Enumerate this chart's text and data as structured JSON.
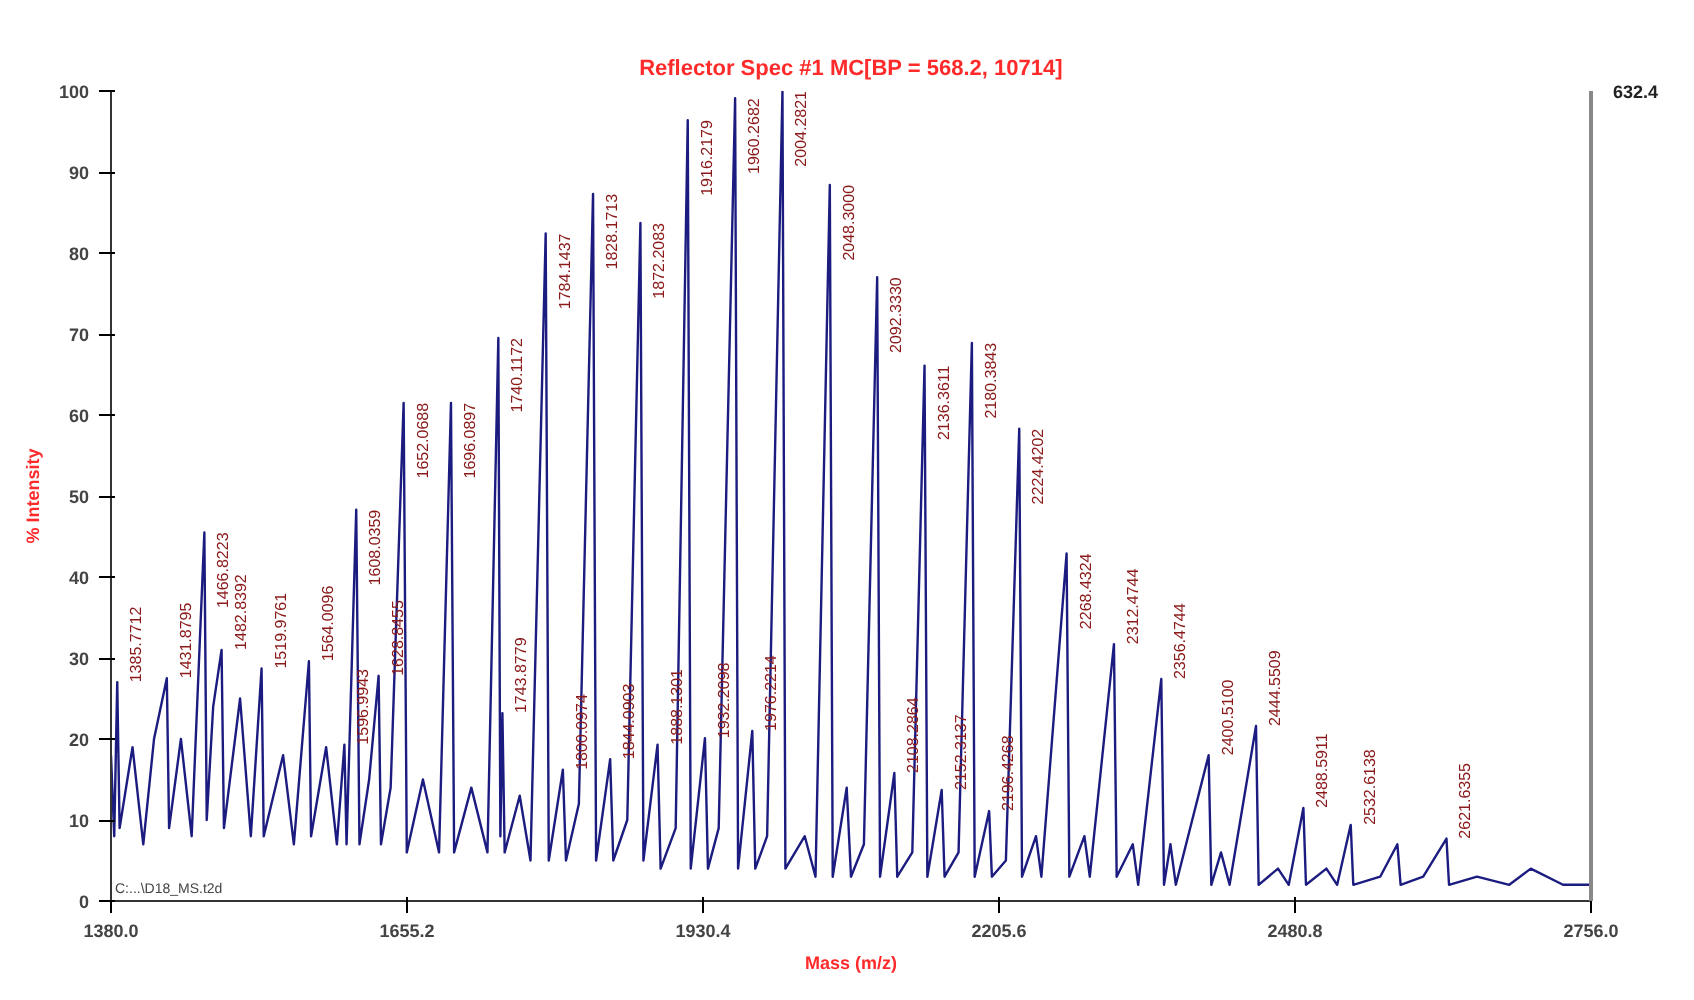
{
  "chart_data": {
    "type": "line",
    "title": "Reflector Spec #1 MC[BP = 568.2, 10714]",
    "xlabel": "Mass (m/z)",
    "ylabel": "% Intensity",
    "xlim": [
      1380,
      2756
    ],
    "xticks": [
      {
        "value": 1380,
        "label": "1380.0"
      },
      1655.2,
      1930.4,
      2205.6,
      2480.8,
      {
        "value": 2756,
        "label": "2756.0"
      }
    ],
    "ylim": [
      0,
      100
    ],
    "yticks": [
      0,
      10,
      20,
      30,
      40,
      50,
      60,
      70,
      80,
      90,
      100
    ],
    "grid": false,
    "marker": "none",
    "line_style": "solid",
    "series": [
      {
        "color": "#1c1c80",
        "x": [
          1380,
          1383,
          1385.8,
          1388,
          1400,
          1410,
          1420,
          1431.9,
          1434,
          1445,
          1455,
          1466.8,
          1469,
          1475,
          1482.8,
          1485,
          1500,
          1510,
          1519.98,
          1522,
          1540,
          1550,
          1564,
          1566,
          1580,
          1590,
          1597,
          1599,
          1608,
          1611,
          1620,
          1628.8,
          1631,
          1640,
          1652.07,
          1655,
          1670,
          1685,
          1696.09,
          1699,
          1715,
          1730,
          1740.12,
          1742,
          1743.9,
          1746,
          1760,
          1770,
          1784.14,
          1787,
          1800.1,
          1803,
          1815,
          1828.17,
          1831,
          1844.09,
          1847,
          1860,
          1872.21,
          1875,
          1888.13,
          1891,
          1905,
          1916.22,
          1919,
          1932.21,
          1935,
          1945,
          1960.27,
          1963,
          1976.22,
          1979,
          1990,
          2004.28,
          2007,
          2025,
          2035,
          2048.3,
          2051,
          2064,
          2068,
          2080,
          2092.33,
          2095,
          2108.29,
          2111,
          2125,
          2136.36,
          2139,
          2152.31,
          2155,
          2168,
          2180.38,
          2183,
          2196.43,
          2199,
          2212,
          2224.42,
          2227,
          2240,
          2245,
          2268.43,
          2271,
          2285,
          2290,
          2312.47,
          2315,
          2330,
          2335,
          2356.47,
          2359,
          2365,
          2370,
          2400.51,
          2403,
          2412,
          2420,
          2444.55,
          2447,
          2465,
          2475,
          2488.59,
          2491,
          2510,
          2520,
          2532.61,
          2535,
          2560,
          2576,
          2579,
          2600,
          2621.64,
          2624,
          2650,
          2680,
          2700,
          2730,
          2756
        ],
        "values": [
          18,
          8,
          27,
          9,
          19,
          7,
          20,
          27.5,
          9,
          20,
          8,
          45.5,
          10,
          24,
          31,
          9,
          25,
          8,
          28.7,
          8,
          18,
          7,
          29.6,
          8,
          19,
          7,
          19.3,
          7,
          48.3,
          7,
          15,
          27.8,
          7,
          14,
          61.5,
          6,
          15,
          6,
          61.5,
          6,
          14,
          6,
          69.5,
          8,
          23.2,
          6,
          13,
          5,
          82.4,
          5,
          16.2,
          5,
          12,
          87.3,
          5,
          17.5,
          5,
          10,
          83.7,
          5,
          19.3,
          4,
          9,
          96.4,
          4,
          20.1,
          4,
          9,
          99.1,
          4,
          21,
          4,
          8,
          100,
          4,
          8,
          3,
          88.4,
          3,
          14,
          3,
          7,
          77,
          3,
          15.8,
          3,
          6,
          66.1,
          3,
          13.7,
          3,
          6,
          68.9,
          3,
          11.1,
          3,
          5,
          58.3,
          3,
          8,
          3,
          42.9,
          3,
          8,
          3,
          31.7,
          3,
          7,
          2,
          27.4,
          2,
          7,
          2,
          18,
          2,
          6,
          2,
          21.6,
          2,
          4,
          2,
          11.5,
          2,
          4,
          2,
          9.4,
          2,
          3,
          7,
          2,
          3,
          7.7,
          2,
          3,
          2,
          4,
          2,
          2
        ]
      }
    ],
    "annotations": [
      "632.4",
      "C:...\\D18_MS.t2d",
      {
        "text": "1385.7712",
        "x": 1385.8,
        "y": 27
      },
      {
        "text": "1431.8795",
        "x": 1431.9,
        "y": 27.5
      },
      {
        "text": "1466.8223",
        "x": 1466.8,
        "y": 45.5
      },
      {
        "text": "1482.8392",
        "x": 1482.8,
        "y": 31
      },
      {
        "text": "1519.9761",
        "x": 1519.98,
        "y": 28.7
      },
      {
        "text": "1564.0096",
        "x": 1564,
        "y": 29.6
      },
      {
        "text": "1596.9943",
        "x": 1597,
        "y": 19.3
      },
      {
        "text": "1608.0359",
        "x": 1608,
        "y": 48.3
      },
      {
        "text": "1628.8455",
        "x": 1628.8,
        "y": 27.8
      },
      {
        "text": "1652.0688",
        "x": 1652.07,
        "y": 61.5
      },
      {
        "text": "1696.0897",
        "x": 1696.09,
        "y": 61.5
      },
      {
        "text": "1740.1172",
        "x": 1740.12,
        "y": 69.5
      },
      {
        "text": "1743.8779",
        "x": 1743.9,
        "y": 23.2
      },
      {
        "text": "1784.1437",
        "x": 1784.14,
        "y": 82.4
      },
      {
        "text": "1800.0974",
        "x": 1800.1,
        "y": 16.2
      },
      {
        "text": "1828.1713",
        "x": 1828.17,
        "y": 87.3
      },
      {
        "text": "1844.0903",
        "x": 1844.09,
        "y": 17.5
      },
      {
        "text": "1872.2083",
        "x": 1872.21,
        "y": 83.7
      },
      {
        "text": "1888.1301",
        "x": 1888.13,
        "y": 19.3
      },
      {
        "text": "1916.2179",
        "x": 1916.22,
        "y": 96.4
      },
      {
        "text": "1932.2098",
        "x": 1932.21,
        "y": 20.1
      },
      {
        "text": "1960.2682",
        "x": 1960.27,
        "y": 99.1
      },
      {
        "text": "1976.2214",
        "x": 1976.22,
        "y": 21
      },
      {
        "text": "2004.2821",
        "x": 2004.28,
        "y": 100
      },
      {
        "text": "2048.3000",
        "x": 2048.3,
        "y": 88.4
      },
      {
        "text": "2092.3330",
        "x": 2092.33,
        "y": 77
      },
      {
        "text": "2108.2864",
        "x": 2108.29,
        "y": 15.8
      },
      {
        "text": "2136.3611",
        "x": 2136.36,
        "y": 66.1
      },
      {
        "text": "2152.3137",
        "x": 2152.31,
        "y": 13.7
      },
      {
        "text": "2180.3843",
        "x": 2180.38,
        "y": 68.9
      },
      {
        "text": "2196.4268",
        "x": 2196.43,
        "y": 11.1
      },
      {
        "text": "2224.4202",
        "x": 2224.42,
        "y": 58.3
      },
      {
        "text": "2268.4324",
        "x": 2268.43,
        "y": 42.9
      },
      {
        "text": "2312.4744",
        "x": 2312.47,
        "y": 31.7
      },
      {
        "text": "2356.4744",
        "x": 2356.47,
        "y": 27.4
      },
      {
        "text": "2400.5100",
        "x": 2400.51,
        "y": 18
      },
      {
        "text": "2444.5509",
        "x": 2444.55,
        "y": 21.6
      },
      {
        "text": "2488.5911",
        "x": 2488.59,
        "y": 11.5
      },
      {
        "text": "2532.6138",
        "x": 2532.61,
        "y": 9.4
      },
      {
        "text": "2621.6355",
        "x": 2621.64,
        "y": 7.7
      }
    ]
  }
}
